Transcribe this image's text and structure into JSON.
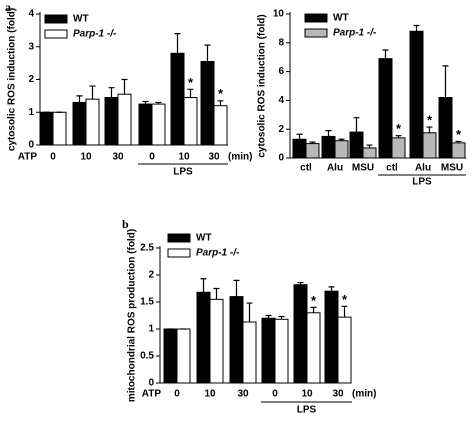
{
  "chart_data": [
    {
      "type": "bar",
      "label": "a",
      "y_label": "cytosolic ROS induction (fold)",
      "x_prefix": "ATP",
      "x_suffix": "(min)",
      "group_label": "LPS",
      "categories": [
        "0",
        "10",
        "30",
        "0",
        "10",
        "30"
      ],
      "ylim": [
        0,
        4
      ],
      "yticks": [
        0,
        1,
        2,
        3,
        4
      ],
      "series": [
        {
          "name": "WT",
          "color": "#000000",
          "values": [
            1.0,
            1.3,
            1.45,
            1.25,
            2.8,
            2.55
          ],
          "errors": [
            0,
            0.2,
            0.3,
            0.08,
            0.6,
            0.5
          ],
          "marks": [
            null,
            null,
            null,
            null,
            null,
            null
          ]
        },
        {
          "name": "Parp-1 -/-",
          "color": "#ffffff",
          "values": [
            1.0,
            1.4,
            1.55,
            1.25,
            1.45,
            1.2
          ],
          "errors": [
            0,
            0.4,
            0.45,
            0.05,
            0.25,
            0.15
          ],
          "marks": [
            null,
            null,
            null,
            null,
            "*",
            "*"
          ]
        }
      ]
    },
    {
      "type": "bar",
      "y_label": "cytosolic ROS induction (fold)",
      "group_label": "LPS",
      "categories": [
        "ctl",
        "Alu",
        "MSU",
        "ctl",
        "Alu",
        "MSU"
      ],
      "ylim": [
        0,
        10
      ],
      "yticks": [
        0,
        2,
        4,
        6,
        8,
        10
      ],
      "series": [
        {
          "name": "WT",
          "color": "#000000",
          "values": [
            1.3,
            1.5,
            1.8,
            6.9,
            8.8,
            4.2
          ],
          "errors": [
            0.35,
            0.4,
            1.0,
            0.6,
            0.4,
            2.2
          ],
          "marks": [
            null,
            null,
            null,
            null,
            null,
            null
          ]
        },
        {
          "name": "Parp-1 -/-",
          "color": "#b8b8b8",
          "values": [
            1.0,
            1.2,
            0.7,
            1.4,
            1.75,
            1.05
          ],
          "errors": [
            0.1,
            0.1,
            0.2,
            0.15,
            0.4,
            0.1
          ],
          "marks": [
            null,
            null,
            null,
            "*",
            "*",
            "*"
          ]
        }
      ]
    },
    {
      "type": "bar",
      "label": "b",
      "y_label": "mitochondrial ROS production (fold)",
      "x_prefix": "ATP",
      "x_suffix": "(min)",
      "group_label": "LPS",
      "categories": [
        "0",
        "10",
        "30",
        "0",
        "10",
        "30"
      ],
      "ylim": [
        0,
        2.5
      ],
      "yticks": [
        0,
        0.5,
        1,
        1.5,
        2,
        2.5
      ],
      "series": [
        {
          "name": "WT",
          "color": "#000000",
          "values": [
            1.0,
            1.68,
            1.6,
            1.2,
            1.82,
            1.7
          ],
          "errors": [
            0,
            0.25,
            0.3,
            0.05,
            0.04,
            0.08
          ],
          "marks": [
            null,
            null,
            null,
            null,
            null,
            null
          ]
        },
        {
          "name": "Parp-1 -/-",
          "color": "#ffffff",
          "values": [
            1.0,
            1.55,
            1.13,
            1.18,
            1.3,
            1.22
          ],
          "errors": [
            0,
            0.2,
            0.35,
            0.05,
            0.1,
            0.2
          ],
          "marks": [
            null,
            null,
            null,
            null,
            "*",
            "*"
          ]
        }
      ]
    }
  ]
}
